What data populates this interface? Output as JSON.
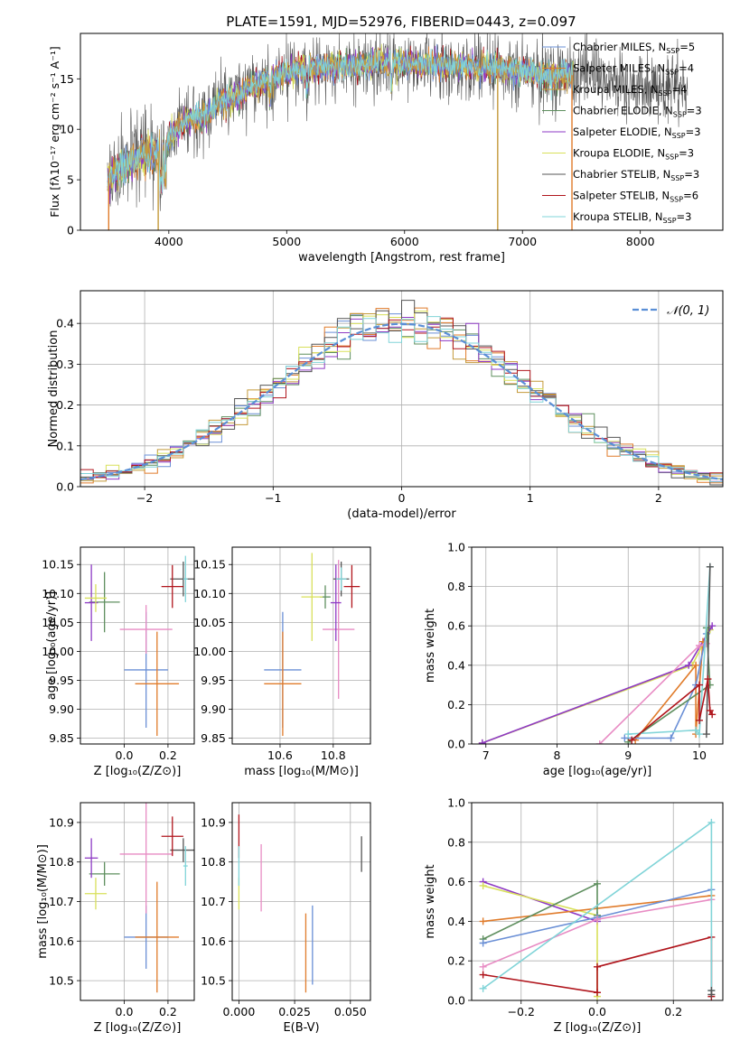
{
  "figure_title": "PLATE=1591, MJD=52976, FIBERID=0443, z=0.097",
  "colors": {
    "Chabrier MILES": "#6a8fd6",
    "Salpeter MILES": "#e07b2a",
    "Kroupa MILES": "#c49a3a",
    "Chabrier ELODIE": "#5f8f5f",
    "Salpeter ELODIE": "#8e3ac4",
    "Kroupa ELODIE": "#d8e05a",
    "Chabrier STELIB": "#555555",
    "Salpeter STELIB": "#b0151c",
    "Kroupa STELIB": "#80d4d8",
    "pink": "#e88cc4",
    "gaussian": "#5a8fd6"
  },
  "chart_data": [
    {
      "id": "spectrum",
      "type": "line",
      "title": "PLATE=1591, MJD=52976, FIBERID=0443, z=0.097",
      "xlabel": "wavelength [Angstrom, rest frame]",
      "ylabel": "Flux [fλ10⁻¹⁷ erg cm⁻² s⁻¹ A⁻¹]",
      "xlim": [
        3250,
        8700
      ],
      "ylim": [
        0,
        19.5
      ],
      "xticks": [
        "4000",
        "5000",
        "6000",
        "7000",
        "8000"
      ],
      "xtick_values": [
        4000,
        5000,
        6000,
        7000,
        8000
      ],
      "yticks": [
        "0",
        "5",
        "10",
        "15"
      ],
      "ytick_values": [
        0,
        5,
        10,
        15
      ],
      "grid": false,
      "legend_position": "top-right",
      "legend_labels": [
        {
          "name": "Chabrier MILES",
          "nssp": "5"
        },
        {
          "name": "Salpeter MILES",
          "nssp": "4"
        },
        {
          "name": "Kroupa MILES",
          "nssp": "4"
        },
        {
          "name": "Chabrier ELODIE",
          "nssp": "3"
        },
        {
          "name": "Salpeter ELODIE",
          "nssp": "3"
        },
        {
          "name": "Kroupa ELODIE",
          "nssp": "3"
        },
        {
          "name": "Chabrier STELIB",
          "nssp": "3"
        },
        {
          "name": "Salpeter STELIB",
          "nssp": "6"
        },
        {
          "name": "Kroupa STELIB",
          "nssp": "3"
        }
      ],
      "continuum": [
        [
          3500,
          5.2
        ],
        [
          3600,
          6.2
        ],
        [
          3700,
          6.8
        ],
        [
          3800,
          7.5
        ],
        [
          3900,
          7.8
        ],
        [
          3950,
          8.0
        ],
        [
          4000,
          9.3
        ],
        [
          4100,
          10.4
        ],
        [
          4200,
          11.2
        ],
        [
          4300,
          11.2
        ],
        [
          4400,
          12.4
        ],
        [
          4500,
          13.0
        ],
        [
          4600,
          13.5
        ],
        [
          4700,
          14.3
        ],
        [
          4800,
          14.7
        ],
        [
          4900,
          15.2
        ],
        [
          5000,
          15.6
        ],
        [
          5100,
          15.9
        ],
        [
          5200,
          16.1
        ],
        [
          5300,
          16.0
        ],
        [
          5400,
          16.2
        ],
        [
          5500,
          16.3
        ],
        [
          5600,
          16.3
        ],
        [
          5700,
          16.4
        ],
        [
          5800,
          16.5
        ],
        [
          5900,
          16.5
        ],
        [
          6000,
          16.6
        ],
        [
          6200,
          16.5
        ],
        [
          6400,
          16.2
        ],
        [
          6600,
          16.2
        ],
        [
          6800,
          16.0
        ],
        [
          7000,
          15.7
        ],
        [
          7200,
          15.4
        ],
        [
          7400,
          15.4
        ],
        [
          7600,
          15.0
        ],
        [
          7800,
          14.6
        ],
        [
          8000,
          14.6
        ],
        [
          8200,
          14.4
        ],
        [
          8400,
          14.0
        ]
      ],
      "model_xmax": 7430,
      "drop_lines": [
        {
          "x": 3490,
          "model": "Salpeter MILES"
        },
        {
          "x": 3910,
          "model": "Kroupa MILES"
        },
        {
          "x": 6790,
          "model": "Kroupa MILES"
        },
        {
          "x": 7420,
          "model": "Salpeter MILES"
        }
      ]
    },
    {
      "id": "residuals",
      "type": "histogram",
      "xlabel": "(data-model)/error",
      "ylabel": "Normed distribution",
      "xlim": [
        -2.5,
        2.5
      ],
      "ylim": [
        0,
        0.48
      ],
      "xticks": [
        "−2",
        "−1",
        "0",
        "1",
        "2"
      ],
      "xtick_values": [
        -2,
        -1,
        0,
        1,
        2
      ],
      "yticks": [
        "0.0",
        "0.1",
        "0.2",
        "0.3",
        "0.4"
      ],
      "ytick_values": [
        0,
        0.1,
        0.2,
        0.3,
        0.4
      ],
      "grid": true,
      "bin_width": 0.1,
      "legend_position": "top-right",
      "gaussian_label": "𝒩(0, 1)"
    },
    {
      "id": "age-vs-Z",
      "type": "errorbar",
      "xlabel": "Z [log₁₀(Z/Z⊙)]",
      "ylabel": "age  [log₁₀(age/yr)]",
      "xlim": [
        -0.2,
        0.32
      ],
      "ylim": [
        9.84,
        10.18
      ],
      "xticks": [
        "0.0",
        "0.2"
      ],
      "xtick_values": [
        0,
        0.2
      ],
      "yticks": [
        "9.85",
        "9.90",
        "9.95",
        "10.00",
        "10.05",
        "10.10",
        "10.15"
      ],
      "ytick_values": [
        9.85,
        9.9,
        9.95,
        10.0,
        10.05,
        10.1,
        10.15
      ],
      "grid": true,
      "points": [
        {
          "model": "Chabrier MILES",
          "x": 0.1,
          "y": 9.968,
          "xerr": 0.1,
          "yerr": 0.1
        },
        {
          "model": "Salpeter MILES",
          "x": 0.15,
          "y": 9.944,
          "xerr": 0.1,
          "yerr": 0.09
        },
        {
          "model": "pink",
          "x": 0.1,
          "y": 10.038,
          "xerr": 0.12,
          "yerr": 0.042
        },
        {
          "model": "Chabrier ELODIE",
          "x": -0.09,
          "y": 10.085,
          "xerr": 0.07,
          "yerr": 0.052
        },
        {
          "model": "Salpeter ELODIE",
          "x": -0.15,
          "y": 10.084,
          "xerr": 0.03,
          "yerr": 0.066
        },
        {
          "model": "Kroupa ELODIE",
          "x": -0.13,
          "y": 10.092,
          "xerr": 0.05,
          "yerr": 0.024
        },
        {
          "model": "Chabrier STELIB",
          "x": 0.27,
          "y": 10.125,
          "xerr": 0.06,
          "yerr": 0.03
        },
        {
          "model": "Salpeter STELIB",
          "x": 0.22,
          "y": 10.112,
          "xerr": 0.05,
          "yerr": 0.037
        },
        {
          "model": "Kroupa STELIB",
          "x": 0.28,
          "y": 10.125,
          "xerr": 0.01,
          "yerr": 0.04
        }
      ]
    },
    {
      "id": "age-vs-mass",
      "type": "errorbar",
      "xlabel": "mass [log₁₀(M/M⊙)]",
      "ylabel": "",
      "xlim": [
        10.42,
        10.94
      ],
      "ylim": [
        9.84,
        10.18
      ],
      "xticks": [
        "10.6",
        "10.8"
      ],
      "xtick_values": [
        10.6,
        10.8
      ],
      "yticks": [
        "9.85",
        "9.90",
        "9.95",
        "10.00",
        "10.05",
        "10.10",
        "10.15"
      ],
      "ytick_values": [
        9.85,
        9.9,
        9.95,
        10.0,
        10.05,
        10.1,
        10.15
      ],
      "grid": true,
      "points": [
        {
          "model": "Chabrier MILES",
          "x": 10.61,
          "y": 9.968,
          "xerr": 0.07,
          "yerr": 0.1
        },
        {
          "model": "Salpeter MILES",
          "x": 10.61,
          "y": 9.944,
          "xerr": 0.07,
          "yerr": 0.09
        },
        {
          "model": "pink",
          "x": 10.82,
          "y": 10.038,
          "xerr": 0.06,
          "yerr": 0.12
        },
        {
          "model": "Chabrier ELODIE",
          "x": 10.77,
          "y": 10.094,
          "xerr": 0.02,
          "yerr": 0.02
        },
        {
          "model": "Salpeter ELODIE",
          "x": 10.81,
          "y": 10.084,
          "xerr": 0.02,
          "yerr": 0.066
        },
        {
          "model": "Kroupa ELODIE",
          "x": 10.72,
          "y": 10.094,
          "xerr": 0.04,
          "yerr": 0.076
        },
        {
          "model": "Chabrier STELIB",
          "x": 10.83,
          "y": 10.125,
          "xerr": 0.03,
          "yerr": 0.03
        },
        {
          "model": "Salpeter STELIB",
          "x": 10.87,
          "y": 10.112,
          "xerr": 0.03,
          "yerr": 0.037
        },
        {
          "model": "Kroupa STELIB",
          "x": 10.83,
          "y": 10.125,
          "xerr": 0.02,
          "yerr": 0.02
        }
      ]
    },
    {
      "id": "mass-vs-Z",
      "type": "errorbar",
      "xlabel": "Z [log₁₀(Z/Z⊙)]",
      "ylabel": "mass [log₁₀(M/M⊙)]",
      "xlim": [
        -0.2,
        0.32
      ],
      "ylim": [
        10.45,
        10.95
      ],
      "xticks": [
        "0.0",
        "0.2"
      ],
      "xtick_values": [
        0,
        0.2
      ],
      "yticks": [
        "10.5",
        "10.6",
        "10.7",
        "10.8",
        "10.9"
      ],
      "ytick_values": [
        10.5,
        10.6,
        10.7,
        10.8,
        10.9
      ],
      "grid": true,
      "points": [
        {
          "model": "Chabrier MILES",
          "x": 0.1,
          "y": 10.61,
          "xerr": 0.1,
          "yerr": 0.08
        },
        {
          "model": "Salpeter MILES",
          "x": 0.15,
          "y": 10.61,
          "xerr": 0.1,
          "yerr": 0.14
        },
        {
          "model": "pink",
          "x": 0.1,
          "y": 10.82,
          "xerr": 0.12,
          "yerr": 0.15
        },
        {
          "model": "Chabrier ELODIE",
          "x": -0.09,
          "y": 10.77,
          "xerr": 0.07,
          "yerr": 0.03
        },
        {
          "model": "Salpeter ELODIE",
          "x": -0.15,
          "y": 10.81,
          "xerr": 0.03,
          "yerr": 0.05
        },
        {
          "model": "Kroupa ELODIE",
          "x": -0.13,
          "y": 10.72,
          "xerr": 0.05,
          "yerr": 0.04
        },
        {
          "model": "Chabrier STELIB",
          "x": 0.27,
          "y": 10.83,
          "xerr": 0.06,
          "yerr": 0.03
        },
        {
          "model": "Salpeter STELIB",
          "x": 0.22,
          "y": 10.865,
          "xerr": 0.05,
          "yerr": 0.05
        },
        {
          "model": "Kroupa STELIB",
          "x": 0.28,
          "y": 10.79,
          "xerr": 0.01,
          "yerr": 0.05
        }
      ]
    },
    {
      "id": "mass-vs-EBV",
      "type": "errorbar",
      "xlabel": "E(B-V)",
      "ylabel": "",
      "xlim": [
        -0.003,
        0.059
      ],
      "ylim": [
        10.45,
        10.95
      ],
      "xticks": [
        "0.000",
        "0.025",
        "0.050"
      ],
      "xtick_values": [
        0,
        0.025,
        0.05
      ],
      "yticks": [
        "10.5",
        "10.6",
        "10.7",
        "10.8",
        "10.9"
      ],
      "ytick_values": [
        10.5,
        10.6,
        10.7,
        10.8,
        10.9
      ],
      "grid": true,
      "points": [
        {
          "model": "Salpeter STELIB",
          "x": 0.0,
          "y": 10.865,
          "xerr": 0,
          "yerr": 0.055
        },
        {
          "model": "Kroupa ELODIE",
          "x": 0.0,
          "y": 10.72,
          "xerr": 0,
          "yerr": 0.04
        },
        {
          "model": "Kroupa STELIB",
          "x": 0.0,
          "y": 10.79,
          "xerr": 0,
          "yerr": 0.05
        },
        {
          "model": "pink",
          "x": 0.01,
          "y": 10.76,
          "xerr": 0,
          "yerr": 0.085
        },
        {
          "model": "Salpeter MILES",
          "x": 0.03,
          "y": 10.57,
          "xerr": 0,
          "yerr": 0.1
        },
        {
          "model": "Chabrier MILES",
          "x": 0.033,
          "y": 10.59,
          "xerr": 0,
          "yerr": 0.1
        },
        {
          "model": "Chabrier STELIB",
          "x": 0.055,
          "y": 10.82,
          "xerr": 0,
          "yerr": 0.045
        }
      ]
    },
    {
      "id": "weight-vs-age",
      "type": "line",
      "xlabel": "age  [log₁₀(age/yr)]",
      "ylabel": "mass weight",
      "xlim": [
        6.8,
        10.33
      ],
      "ylim": [
        0,
        1.0
      ],
      "xticks": [
        "7",
        "8",
        "9",
        "10"
      ],
      "xtick_values": [
        7,
        8,
        9,
        10
      ],
      "yticks": [
        "0.0",
        "0.2",
        "0.4",
        "0.6",
        "0.8",
        "1.0"
      ],
      "ytick_values": [
        0,
        0.2,
        0.4,
        0.6,
        0.8,
        1.0
      ],
      "grid": true,
      "series": [
        {
          "model": "Kroupa ELODIE",
          "points": [
            [
              6.95,
              0.005
            ],
            [
              9.9,
              0.4
            ],
            [
              10.15,
              0.58
            ]
          ]
        },
        {
          "model": "Salpeter ELODIE",
          "points": [
            [
              6.95,
              0.005
            ],
            [
              9.85,
              0.4
            ],
            [
              10.18,
              0.6
            ]
          ]
        },
        {
          "model": "Salpeter MILES",
          "points": [
            [
              9.1,
              0.02
            ],
            [
              9.95,
              0.4
            ],
            [
              9.95,
              0.05
            ],
            [
              10.05,
              0.52
            ]
          ]
        },
        {
          "model": "pink",
          "points": [
            [
              8.6,
              0.0
            ],
            [
              10.0,
              0.5
            ],
            [
              10.1,
              0.51
            ]
          ]
        },
        {
          "model": "Chabrier MILES",
          "points": [
            [
              8.95,
              0.03
            ],
            [
              9.6,
              0.03
            ],
            [
              9.95,
              0.3
            ],
            [
              10.1,
              0.56
            ]
          ]
        },
        {
          "model": "Chabrier ELODIE",
          "points": [
            [
              9.0,
              0.01
            ],
            [
              10.15,
              0.3
            ],
            [
              10.1,
              0.59
            ]
          ]
        },
        {
          "model": "Kroupa STELIB",
          "points": [
            [
              9.0,
              0.05
            ],
            [
              9.95,
              0.07
            ],
            [
              10.0,
              0.05
            ],
            [
              10.15,
              0.9
            ]
          ]
        },
        {
          "model": "Chabrier STELIB",
          "points": [
            [
              10.1,
              0.05
            ],
            [
              10.15,
              0.9
            ]
          ]
        },
        {
          "model": "Salpeter STELIB",
          "points": [
            [
              9.05,
              0.02
            ],
            [
              10.0,
              0.3
            ],
            [
              10.0,
              0.12
            ],
            [
              10.12,
              0.33
            ],
            [
              10.15,
              0.17
            ],
            [
              10.18,
              0.15
            ]
          ]
        }
      ]
    },
    {
      "id": "weight-vs-Z",
      "type": "line",
      "xlabel": "Z [log₁₀(Z/Z⊙)]",
      "ylabel": "mass weight",
      "xlim": [
        -0.33,
        0.33
      ],
      "ylim": [
        0,
        1.0
      ],
      "xticks": [
        "−0.2",
        "0.0",
        "0.2"
      ],
      "xtick_values": [
        -0.2,
        0.0,
        0.2
      ],
      "yticks": [
        "0.0",
        "0.2",
        "0.4",
        "0.6",
        "0.8",
        "1.0"
      ],
      "ytick_values": [
        0,
        0.2,
        0.4,
        0.6,
        0.8,
        1.0
      ],
      "grid": true,
      "series": [
        {
          "model": "Salpeter ELODIE",
          "points": [
            [
              -0.3,
              0.6
            ],
            [
              0.0,
              0.4
            ]
          ]
        },
        {
          "model": "Kroupa ELODIE",
          "points": [
            [
              -0.3,
              0.58
            ],
            [
              0.0,
              0.43
            ],
            [
              0.0,
              0.02
            ]
          ]
        },
        {
          "model": "Salpeter MILES",
          "points": [
            [
              -0.3,
              0.4
            ],
            [
              0.3,
              0.53
            ]
          ]
        },
        {
          "model": "Chabrier ELODIE",
          "points": [
            [
              -0.3,
              0.31
            ],
            [
              0.0,
              0.59
            ],
            [
              0.0,
              0.43
            ]
          ]
        },
        {
          "model": "Chabrier MILES",
          "points": [
            [
              -0.3,
              0.29
            ],
            [
              0.0,
              0.42
            ],
            [
              0.3,
              0.56
            ]
          ]
        },
        {
          "model": "pink",
          "points": [
            [
              -0.3,
              0.17
            ],
            [
              0.0,
              0.41
            ],
            [
              0.3,
              0.51
            ]
          ]
        },
        {
          "model": "Salpeter STELIB",
          "points": [
            [
              -0.3,
              0.13
            ],
            [
              0.0,
              0.04
            ],
            [
              0.0,
              0.17
            ],
            [
              0.3,
              0.32
            ],
            [
              0.3,
              0.02
            ]
          ]
        },
        {
          "model": "Kroupa STELIB",
          "points": [
            [
              -0.3,
              0.06
            ],
            [
              0.3,
              0.9
            ],
            [
              0.3,
              0.05
            ]
          ]
        },
        {
          "model": "Chabrier STELIB",
          "points": [
            [
              0.3,
              0.03
            ],
            [
              0.3,
              0.05
            ]
          ]
        }
      ]
    }
  ]
}
